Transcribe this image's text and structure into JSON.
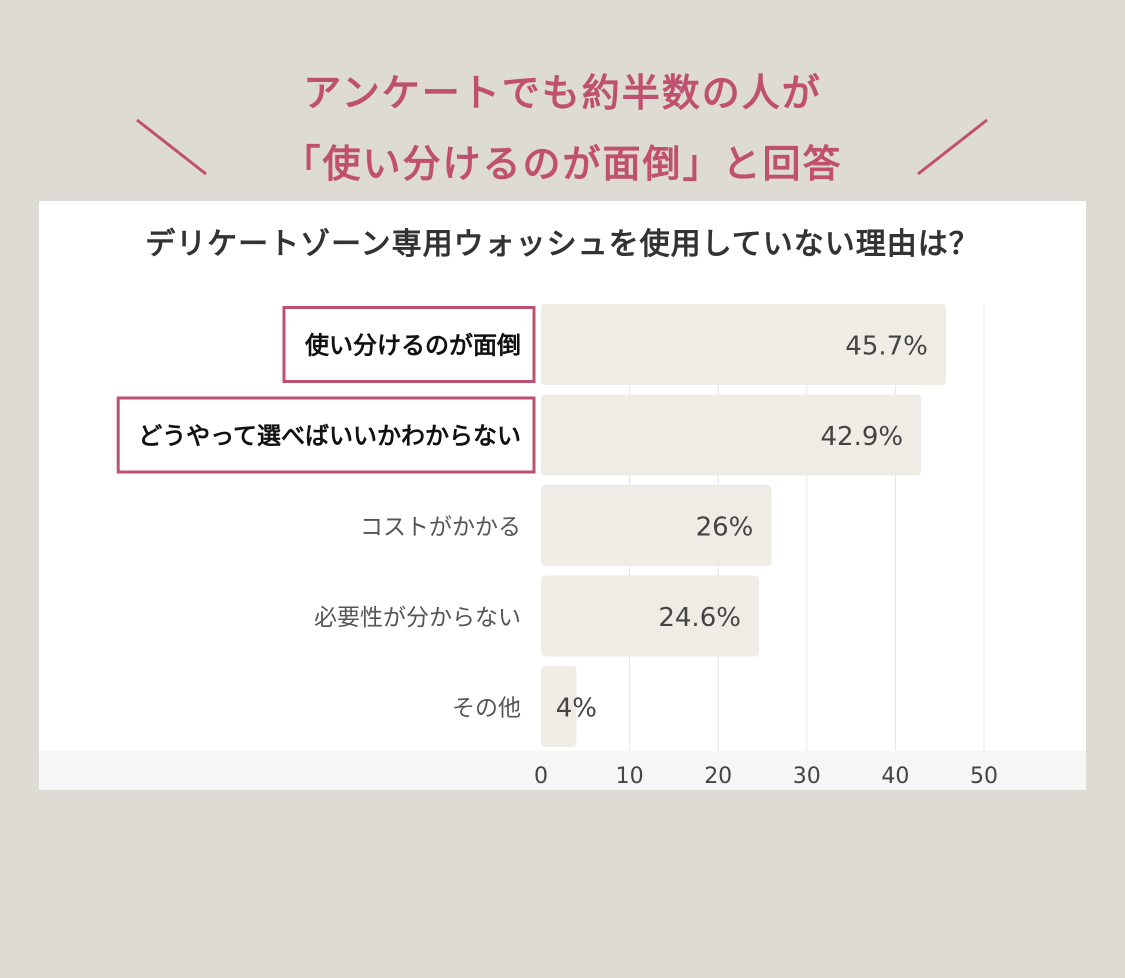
{
  "headline": {
    "line1": "アンケートでも約半数の人が",
    "line2": "「使い分けるのが面倒」と回答"
  },
  "colors": {
    "accent": "#c0506f",
    "background": "#dedbd4",
    "bar": "#efece6",
    "text": "#333333"
  },
  "chart_data": {
    "type": "bar",
    "orientation": "horizontal",
    "title": "デリケートゾーン専用ウォッシュを使用していない理由は？",
    "categories": [
      "使い分けるのが面倒",
      "どうやって選べばいいかわからない",
      "コストがかかる",
      "必要性が分からない",
      "その他"
    ],
    "values": [
      45.7,
      42.9,
      26,
      24.6,
      4
    ],
    "value_labels": [
      "45.7%",
      "42.9%",
      "26%",
      "24.6%",
      "4%"
    ],
    "highlighted": [
      true,
      true,
      false,
      false,
      false
    ],
    "xlim": [
      0,
      50
    ],
    "xticks": [
      0,
      10,
      20,
      30,
      40,
      50
    ],
    "grid": true,
    "legend": "none"
  }
}
